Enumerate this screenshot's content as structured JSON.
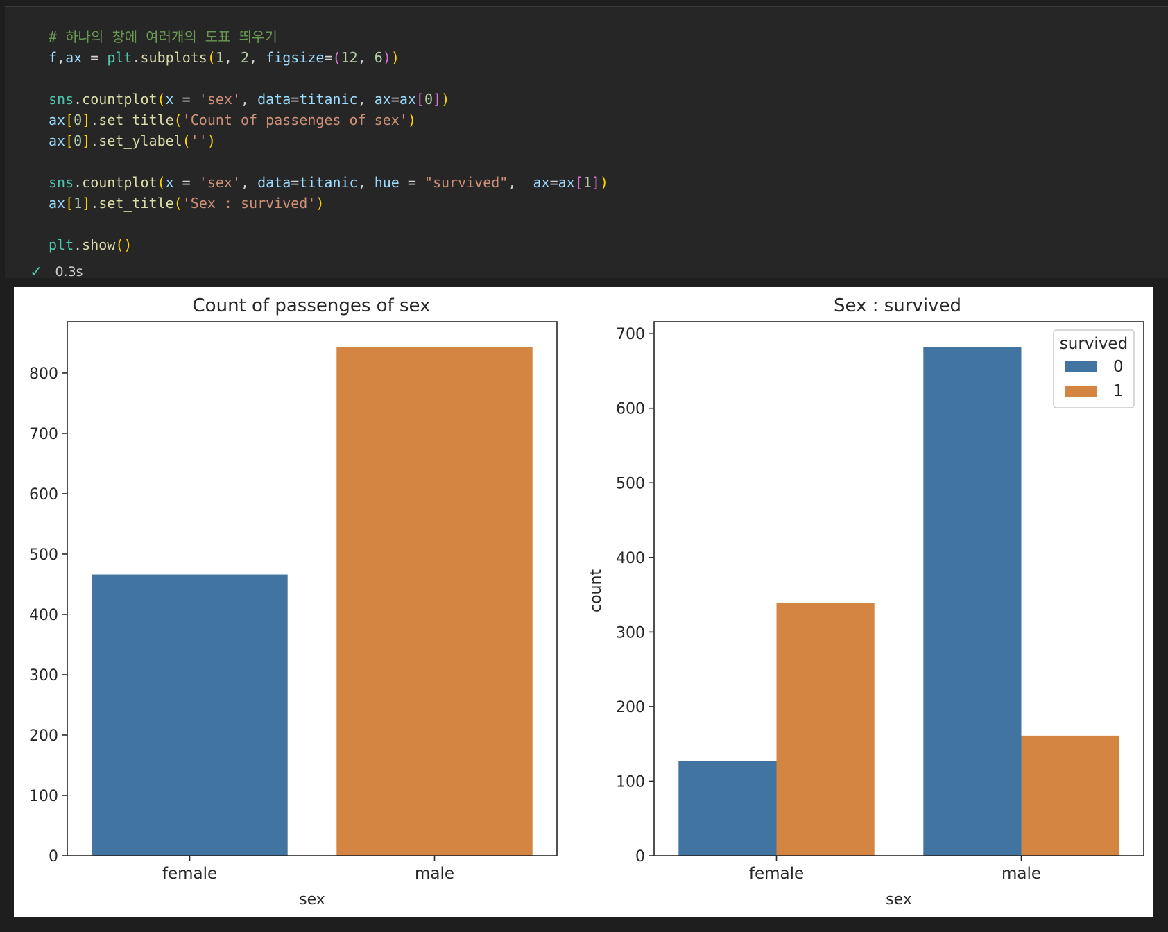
{
  "code": {
    "lines": [
      [
        [
          "c-comment",
          "# 하나의 창에 여러개의 도표 띄우기"
        ]
      ],
      [
        [
          "c-var",
          "f"
        ],
        [
          "",
          ","
        ],
        [
          "c-var",
          "ax"
        ],
        [
          "",
          " = "
        ],
        [
          "c-obj",
          "plt"
        ],
        [
          "",
          "."
        ],
        [
          "c-fn",
          "subplots"
        ],
        [
          "c-p1",
          "("
        ],
        [
          "c-num",
          "1"
        ],
        [
          "",
          ", "
        ],
        [
          "c-num",
          "2"
        ],
        [
          "",
          ", "
        ],
        [
          "c-var",
          "figsize"
        ],
        [
          "",
          "="
        ],
        [
          "c-p2",
          "("
        ],
        [
          "c-num",
          "12"
        ],
        [
          "",
          ", "
        ],
        [
          "c-num",
          "6"
        ],
        [
          "c-p2",
          ")"
        ],
        [
          "c-p1",
          ")"
        ]
      ],
      [],
      [
        [
          "c-obj",
          "sns"
        ],
        [
          "",
          "."
        ],
        [
          "c-fn",
          "countplot"
        ],
        [
          "c-p1",
          "("
        ],
        [
          "c-var",
          "x"
        ],
        [
          "",
          " = "
        ],
        [
          "c-str",
          "'sex'"
        ],
        [
          "",
          ", "
        ],
        [
          "c-var",
          "data"
        ],
        [
          "",
          "="
        ],
        [
          "c-var",
          "titanic"
        ],
        [
          "",
          ", "
        ],
        [
          "c-var",
          "ax"
        ],
        [
          "",
          "="
        ],
        [
          "c-var",
          "ax"
        ],
        [
          "c-p2",
          "["
        ],
        [
          "c-num",
          "0"
        ],
        [
          "c-p2",
          "]"
        ],
        [
          "c-p1",
          ")"
        ]
      ],
      [
        [
          "c-var",
          "ax"
        ],
        [
          "c-p1",
          "["
        ],
        [
          "c-num",
          "0"
        ],
        [
          "c-p1",
          "]"
        ],
        [
          "",
          "."
        ],
        [
          "c-fn",
          "set_title"
        ],
        [
          "c-p1",
          "("
        ],
        [
          "c-str",
          "'Count of passenges of sex'"
        ],
        [
          "c-p1",
          ")"
        ]
      ],
      [
        [
          "c-var",
          "ax"
        ],
        [
          "c-p1",
          "["
        ],
        [
          "c-num",
          "0"
        ],
        [
          "c-p1",
          "]"
        ],
        [
          "",
          "."
        ],
        [
          "c-fn",
          "set_ylabel"
        ],
        [
          "c-p1",
          "("
        ],
        [
          "c-str",
          "''"
        ],
        [
          "c-p1",
          ")"
        ]
      ],
      [],
      [
        [
          "c-obj",
          "sns"
        ],
        [
          "",
          "."
        ],
        [
          "c-fn",
          "countplot"
        ],
        [
          "c-p1",
          "("
        ],
        [
          "c-var",
          "x"
        ],
        [
          "",
          " = "
        ],
        [
          "c-str",
          "'sex'"
        ],
        [
          "",
          ", "
        ],
        [
          "c-var",
          "data"
        ],
        [
          "",
          "="
        ],
        [
          "c-var",
          "titanic"
        ],
        [
          "",
          ", "
        ],
        [
          "c-var",
          "hue"
        ],
        [
          "",
          " = "
        ],
        [
          "c-str",
          "\"survived\""
        ],
        [
          "",
          ",  "
        ],
        [
          "c-var",
          "ax"
        ],
        [
          "",
          "="
        ],
        [
          "c-var",
          "ax"
        ],
        [
          "c-p2",
          "["
        ],
        [
          "c-num",
          "1"
        ],
        [
          "c-p2",
          "]"
        ],
        [
          "c-p1",
          ")"
        ]
      ],
      [
        [
          "c-var",
          "ax"
        ],
        [
          "c-p1",
          "["
        ],
        [
          "c-num",
          "1"
        ],
        [
          "c-p1",
          "]"
        ],
        [
          "",
          "."
        ],
        [
          "c-fn",
          "set_title"
        ],
        [
          "c-p1",
          "("
        ],
        [
          "c-str",
          "'Sex : survived'"
        ],
        [
          "c-p1",
          ")"
        ]
      ],
      [],
      [
        [
          "c-obj",
          "plt"
        ],
        [
          "",
          "."
        ],
        [
          "c-fn",
          "show"
        ],
        [
          "c-p1",
          "()"
        ]
      ]
    ]
  },
  "status": {
    "check_icon": "✓",
    "time": "0.3s"
  },
  "colors": {
    "blue": "#4174a0",
    "orange": "#d48541"
  },
  "chart_data": [
    {
      "type": "bar",
      "title": "Count of passenges of sex",
      "xlabel": "sex",
      "ylabel": "",
      "categories": [
        "female",
        "male"
      ],
      "values": [
        466,
        843
      ],
      "ylim": [
        0,
        885
      ],
      "yticks": [
        0,
        100,
        200,
        300,
        400,
        500,
        600,
        700,
        800
      ],
      "bar_colors": [
        "#4174a0",
        "#d48541"
      ]
    },
    {
      "type": "bar",
      "title": "Sex : survived",
      "xlabel": "sex",
      "ylabel": "count",
      "categories": [
        "female",
        "male"
      ],
      "series": [
        {
          "name": "0",
          "values": [
            127,
            682
          ],
          "color": "#4174a0"
        },
        {
          "name": "1",
          "values": [
            339,
            161
          ],
          "color": "#d48541"
        }
      ],
      "ylim": [
        0,
        716
      ],
      "yticks": [
        0,
        100,
        200,
        300,
        400,
        500,
        600,
        700
      ],
      "legend": {
        "title": "survived",
        "placement": "top-right"
      }
    }
  ]
}
